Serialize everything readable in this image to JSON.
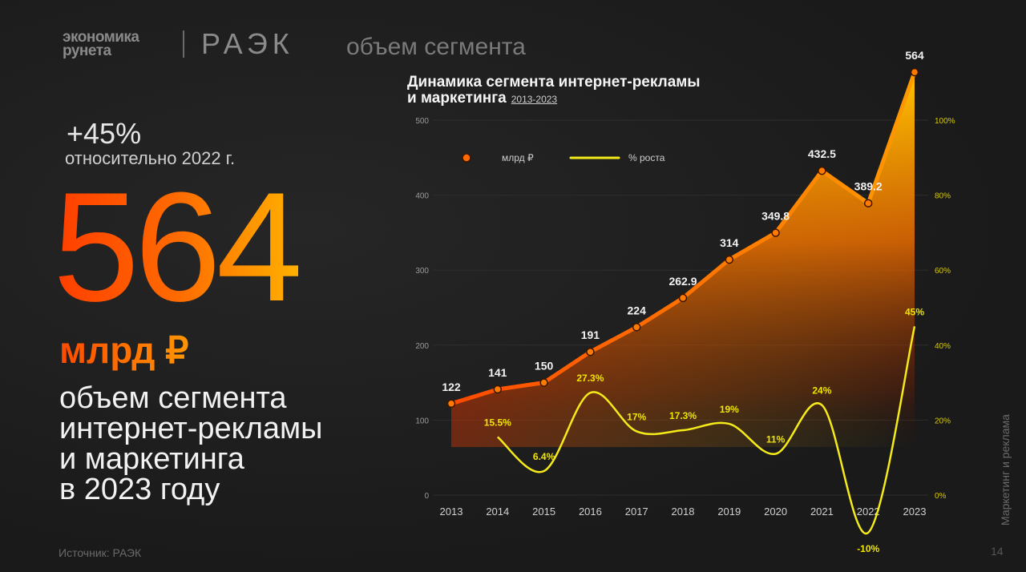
{
  "header": {
    "brand_line1": "экономика",
    "brand_line2": "рунета",
    "org": "РАЭК",
    "section": "объем сегмента"
  },
  "summary": {
    "growth": "+45%",
    "growth_note": "относительно 2022 г.",
    "value": "564",
    "unit": "млрд ₽",
    "desc_lines": [
      "объем сегмента",
      "интернет-рекламы",
      "и маркетинга",
      "в 2023 году"
    ]
  },
  "footer": {
    "source": "Источник: РАЭК",
    "page": "14",
    "side_label": "Маркетинг и реклама"
  },
  "colors": {
    "orange": "#ff5a00",
    "amber": "#ffb300",
    "yellow": "#f5ea1a",
    "bg": "#1b1b1b"
  },
  "chart_data": {
    "type": "line",
    "title_line1": "Динамика сегмента интернет-рекламы",
    "title_line2": "и маркетинга",
    "title_years": "2013-2023",
    "categories": [
      "2013",
      "2014",
      "2015",
      "2016",
      "2017",
      "2018",
      "2019",
      "2020",
      "2021",
      "2022",
      "2023"
    ],
    "left_axis": {
      "ticks": [
        "0",
        "100",
        "200",
        "300",
        "400",
        "500"
      ],
      "range": [
        0,
        500
      ]
    },
    "right_axis": {
      "ticks": [
        "0%",
        "20%",
        "40%",
        "60%",
        "80%",
        "100%"
      ],
      "range": [
        0,
        100
      ]
    },
    "series": [
      {
        "name": "млрд ₽",
        "axis": "left",
        "values": [
          122,
          141,
          150,
          191,
          224,
          262.9,
          314,
          349.8,
          432.5,
          389.2,
          564
        ],
        "labels": [
          "122",
          "141",
          "150",
          "191",
          "224",
          "262.9",
          "314",
          "349.8",
          "432.5",
          "389.2",
          "564"
        ]
      },
      {
        "name": "% роста",
        "axis": "right",
        "values": [
          null,
          15.5,
          6.4,
          27.3,
          17,
          17.3,
          19,
          11,
          24,
          -10,
          45
        ],
        "labels": [
          "",
          "15.5%",
          "6.4%",
          "27.3%",
          "17%",
          "17.3%",
          "19%",
          "11%",
          "24%",
          "-10%",
          "45%"
        ]
      }
    ]
  }
}
